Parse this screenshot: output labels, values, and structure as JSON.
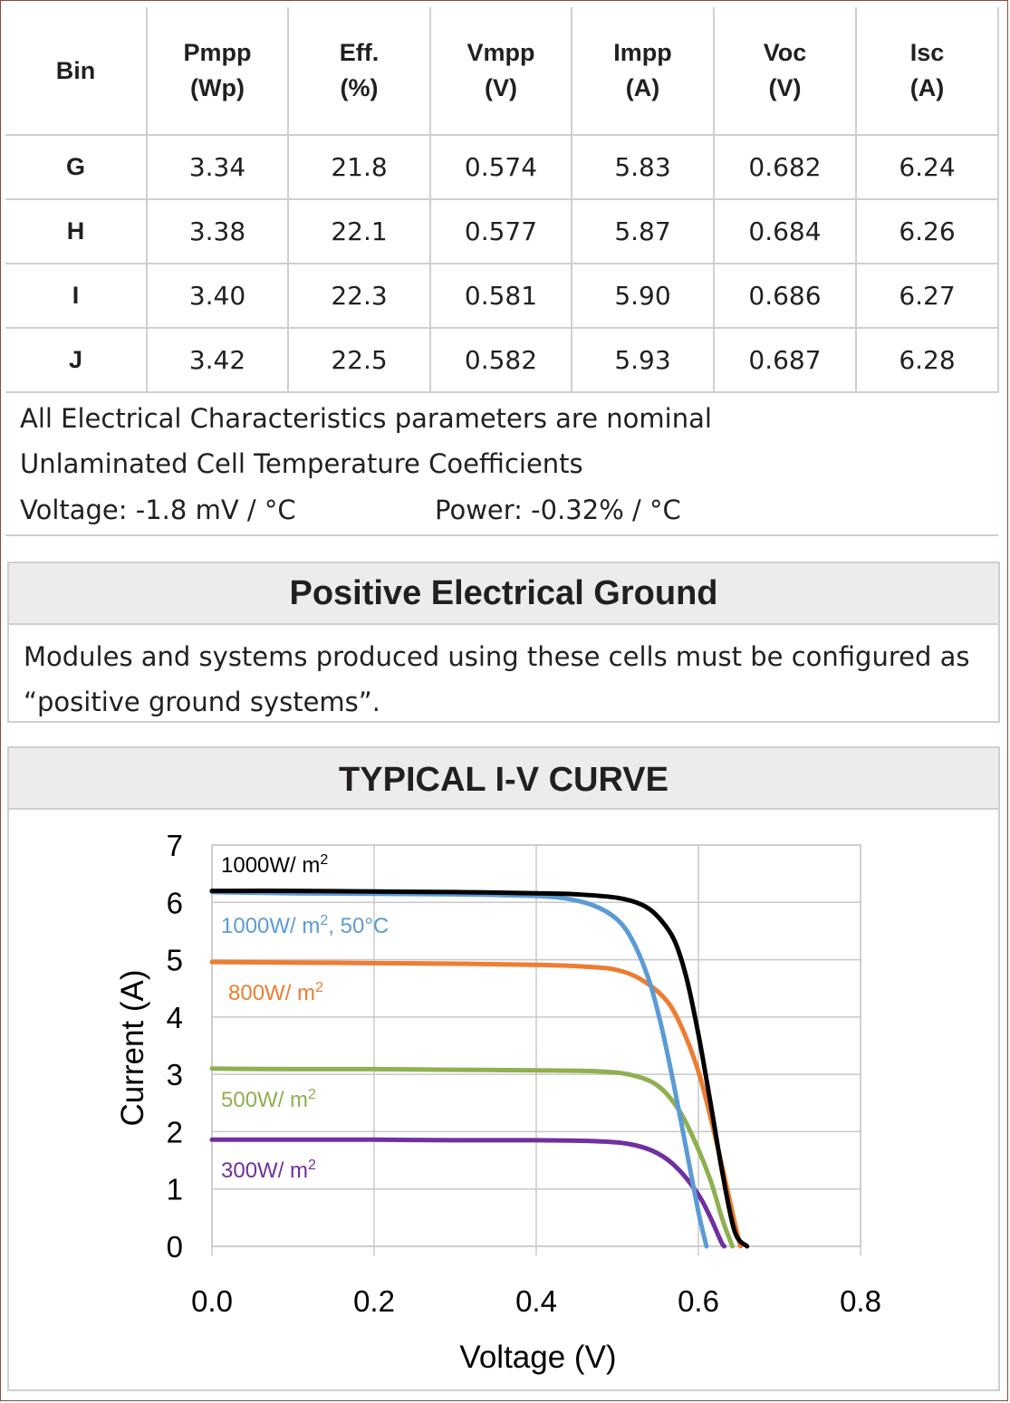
{
  "table": {
    "headers": [
      [
        "Bin"
      ],
      [
        "Pmpp",
        "(Wp)"
      ],
      [
        "Eff.",
        "(%)"
      ],
      [
        "Vmpp",
        "(V)"
      ],
      [
        "Impp",
        "(A)"
      ],
      [
        "Voc",
        "(V)"
      ],
      [
        "Isc",
        "(A)"
      ]
    ],
    "rows": [
      [
        "G",
        "3.34",
        "21.8",
        "0.574",
        "5.83",
        "0.682",
        "6.24"
      ],
      [
        "H",
        "3.38",
        "22.1",
        "0.577",
        "5.87",
        "0.684",
        "6.26"
      ],
      [
        "I",
        "3.40",
        "22.3",
        "0.581",
        "5.90",
        "0.686",
        "6.27"
      ],
      [
        "J",
        "3.42",
        "22.5",
        "0.582",
        "5.93",
        "0.687",
        "6.28"
      ]
    ]
  },
  "notes": {
    "line1": "All Electrical Characteristics parameters are nominal",
    "line2": "Unlaminated Cell Temperature Coefficients",
    "voltage": "Voltage: -1.8 mV / °C",
    "power": "Power: -0.32% / °C"
  },
  "ground": {
    "title": "Positive Electrical Ground",
    "text": "Modules and systems produced using these cells must be configured as “positive ground systems”."
  },
  "iv_section": {
    "title": "TYPICAL I-V CURVE"
  },
  "chart_data": {
    "type": "line",
    "xlabel": "Voltage (V)",
    "ylabel": "Current (A)",
    "xlim": [
      0.0,
      0.8
    ],
    "ylim": [
      0,
      7
    ],
    "x_ticks": [
      "0.0",
      "0.2",
      "0.4",
      "0.6",
      "0.8"
    ],
    "y_ticks": [
      "0",
      "1",
      "2",
      "3",
      "4",
      "5",
      "6",
      "7"
    ],
    "grid": true,
    "series": [
      {
        "name": "1000W/ m²",
        "color": "#000000",
        "points": [
          [
            0.0,
            6.2
          ],
          [
            0.1,
            6.2
          ],
          [
            0.2,
            6.19
          ],
          [
            0.3,
            6.18
          ],
          [
            0.4,
            6.16
          ],
          [
            0.45,
            6.14
          ],
          [
            0.5,
            6.08
          ],
          [
            0.53,
            5.96
          ],
          [
            0.55,
            5.75
          ],
          [
            0.57,
            5.35
          ],
          [
            0.585,
            4.7
          ],
          [
            0.6,
            3.7
          ],
          [
            0.615,
            2.5
          ],
          [
            0.63,
            1.25
          ],
          [
            0.645,
            0.25
          ],
          [
            0.66,
            0.0
          ]
        ]
      },
      {
        "name": "1000W/ m², 50°C",
        "color": "#5b9bd5",
        "points": [
          [
            0.0,
            6.18
          ],
          [
            0.1,
            6.16
          ],
          [
            0.2,
            6.15
          ],
          [
            0.3,
            6.14
          ],
          [
            0.38,
            6.12
          ],
          [
            0.43,
            6.08
          ],
          [
            0.47,
            5.95
          ],
          [
            0.5,
            5.7
          ],
          [
            0.52,
            5.3
          ],
          [
            0.54,
            4.6
          ],
          [
            0.555,
            3.8
          ],
          [
            0.57,
            2.8
          ],
          [
            0.585,
            1.7
          ],
          [
            0.6,
            0.6
          ],
          [
            0.61,
            0.0
          ]
        ]
      },
      {
        "name": "800W/ m²",
        "color": "#ed7d31",
        "points": [
          [
            0.0,
            4.96
          ],
          [
            0.1,
            4.95
          ],
          [
            0.2,
            4.94
          ],
          [
            0.3,
            4.93
          ],
          [
            0.4,
            4.91
          ],
          [
            0.46,
            4.88
          ],
          [
            0.5,
            4.82
          ],
          [
            0.53,
            4.65
          ],
          [
            0.56,
            4.3
          ],
          [
            0.58,
            3.8
          ],
          [
            0.6,
            3.05
          ],
          [
            0.615,
            2.25
          ],
          [
            0.63,
            1.35
          ],
          [
            0.645,
            0.4
          ],
          [
            0.652,
            0.0
          ]
        ]
      },
      {
        "name": "500W/ m²",
        "color": "#8fb050",
        "points": [
          [
            0.0,
            3.1
          ],
          [
            0.1,
            3.09
          ],
          [
            0.2,
            3.09
          ],
          [
            0.3,
            3.08
          ],
          [
            0.4,
            3.07
          ],
          [
            0.48,
            3.05
          ],
          [
            0.52,
            2.98
          ],
          [
            0.55,
            2.8
          ],
          [
            0.575,
            2.4
          ],
          [
            0.595,
            1.85
          ],
          [
            0.615,
            1.15
          ],
          [
            0.63,
            0.45
          ],
          [
            0.642,
            0.0
          ]
        ]
      },
      {
        "name": "300W/ m²",
        "color": "#7030a0",
        "points": [
          [
            0.0,
            1.86
          ],
          [
            0.1,
            1.86
          ],
          [
            0.2,
            1.86
          ],
          [
            0.3,
            1.85
          ],
          [
            0.4,
            1.85
          ],
          [
            0.48,
            1.83
          ],
          [
            0.52,
            1.77
          ],
          [
            0.55,
            1.62
          ],
          [
            0.575,
            1.35
          ],
          [
            0.6,
            0.9
          ],
          [
            0.615,
            0.5
          ],
          [
            0.628,
            0.08
          ],
          [
            0.632,
            0.0
          ]
        ]
      }
    ],
    "labels": [
      {
        "text": "1000W/ m",
        "sup": "2",
        "color": "#000000"
      },
      {
        "text": "1000W/ m",
        "sup": "2",
        "tail": ", 50°C",
        "color": "#5b9bd5"
      },
      {
        "text": "800W/ m",
        "sup": "2",
        "color": "#ed7d31"
      },
      {
        "text": "500W/ m",
        "sup": "2",
        "color": "#8fb050"
      },
      {
        "text": "300W/ m",
        "sup": "2",
        "color": "#7030a0"
      }
    ]
  }
}
